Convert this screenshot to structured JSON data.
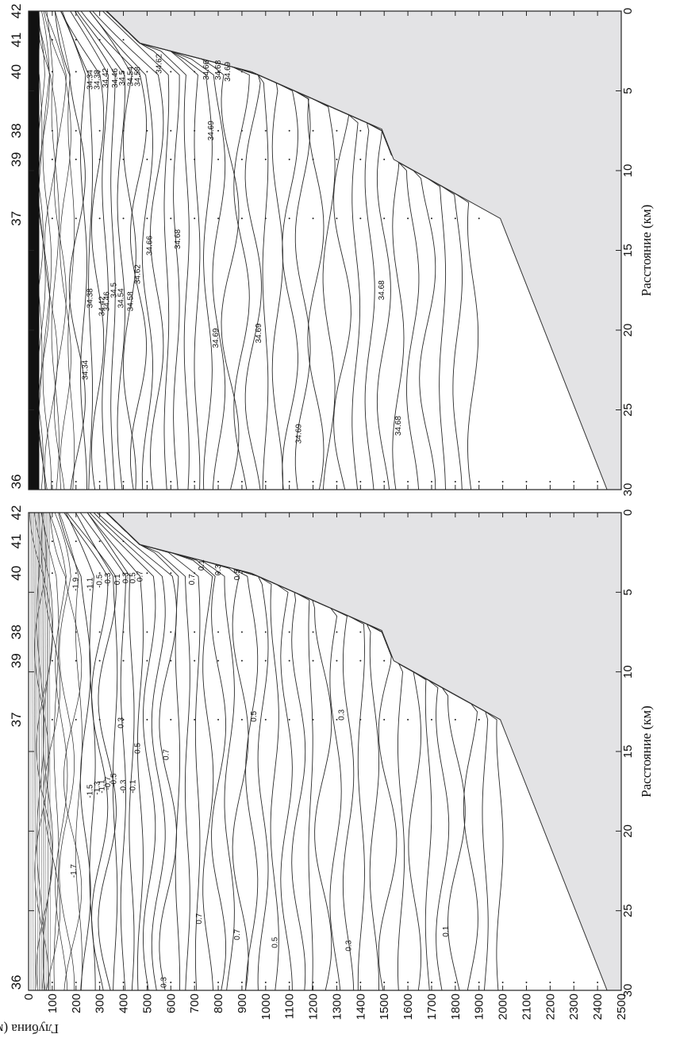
{
  "figure": {
    "depth_axis_label": "Глубина (м)",
    "distance_axis_label": "Расстояние (км)"
  },
  "chart_data": [
    {
      "type": "contour",
      "panel": "top",
      "variable": "salinity",
      "x_axis": {
        "label": "Расстояние (км)",
        "range": [
          0,
          30
        ],
        "ticks": [
          0,
          5,
          10,
          15,
          20,
          25,
          30
        ]
      },
      "y_axis": {
        "label": "Глубина (м)",
        "range": [
          0,
          2500
        ],
        "ticks": [
          0,
          100,
          200,
          300,
          400,
          500,
          600,
          700,
          800,
          900,
          1000,
          1100,
          1200,
          1300,
          1400,
          1500,
          1600,
          1700,
          1800,
          1900,
          2000,
          2100,
          2200,
          2300,
          2400,
          2500
        ]
      },
      "stations": [
        {
          "name": "42",
          "distance": 0
        },
        {
          "name": "41",
          "distance": 1.8
        },
        {
          "name": "40",
          "distance": 3.8
        },
        {
          "name": "38",
          "distance": 7.5
        },
        {
          "name": "39",
          "distance": 9.3
        },
        {
          "name": "37",
          "distance": 13
        },
        {
          "name": "36",
          "distance": 29.5
        }
      ],
      "bottom_profile": [
        {
          "distance": 0,
          "depth": 330
        },
        {
          "distance": 2,
          "depth": 470
        },
        {
          "distance": 3.8,
          "depth": 940
        },
        {
          "distance": 7.4,
          "depth": 1490
        },
        {
          "distance": 9.3,
          "depth": 1540
        },
        {
          "distance": 13,
          "depth": 1990
        },
        {
          "distance": 30,
          "depth": 2440
        }
      ],
      "contour_labels": [
        {
          "text": "34.34",
          "distance": 22.5,
          "depth": 250
        },
        {
          "text": "34.38",
          "distance": 18,
          "depth": 270
        },
        {
          "text": "34.42",
          "distance": 18.5,
          "depth": 320
        },
        {
          "text": "34.46",
          "distance": 18.2,
          "depth": 340
        },
        {
          "text": "34.5",
          "distance": 17.5,
          "depth": 370
        },
        {
          "text": "34.54",
          "distance": 18,
          "depth": 400
        },
        {
          "text": "34.58",
          "distance": 18.2,
          "depth": 440
        },
        {
          "text": "34.62",
          "distance": 16.5,
          "depth": 470
        },
        {
          "text": "34.66",
          "distance": 14.7,
          "depth": 520
        },
        {
          "text": "34.68",
          "distance": 14.3,
          "depth": 640
        },
        {
          "text": "34.69",
          "distance": 20.5,
          "depth": 800
        },
        {
          "text": "34.69",
          "distance": 20.2,
          "depth": 980
        },
        {
          "text": "34.69",
          "distance": 26.5,
          "depth": 1150
        },
        {
          "text": "34.68",
          "distance": 17.5,
          "depth": 1500
        },
        {
          "text": "34.68",
          "distance": 26,
          "depth": 1570
        },
        {
          "text": "34.69",
          "distance": 7.5,
          "depth": 780
        },
        {
          "text": "34.34",
          "distance": 4.3,
          "depth": 270
        },
        {
          "text": "34.38",
          "distance": 4.3,
          "depth": 300
        },
        {
          "text": "34.42",
          "distance": 4.2,
          "depth": 335
        },
        {
          "text": "34.46",
          "distance": 4.2,
          "depth": 375
        },
        {
          "text": "34.5",
          "distance": 4.2,
          "depth": 405
        },
        {
          "text": "34.54",
          "distance": 4.1,
          "depth": 440
        },
        {
          "text": "34.58",
          "distance": 4.1,
          "depth": 470
        },
        {
          "text": "34.62",
          "distance": 3.3,
          "depth": 560
        },
        {
          "text": "34.66",
          "distance": 3.7,
          "depth": 760
        },
        {
          "text": "34.68",
          "distance": 3.7,
          "depth": 810
        },
        {
          "text": "34.69",
          "distance": 3.8,
          "depth": 850
        }
      ]
    },
    {
      "type": "contour",
      "panel": "bottom",
      "variable": "temperature",
      "x_axis": {
        "label": "Расстояние (км)",
        "range": [
          0,
          30
        ],
        "ticks": [
          0,
          5,
          10,
          15,
          20,
          25,
          30
        ]
      },
      "y_axis": {
        "label": "Глубина (м)",
        "range": [
          0,
          2500
        ],
        "ticks": [
          0,
          100,
          200,
          300,
          400,
          500,
          600,
          700,
          800,
          900,
          1000,
          1100,
          1200,
          1300,
          1400,
          1500,
          1600,
          1700,
          1800,
          1900,
          2000,
          2100,
          2200,
          2300,
          2400,
          2500
        ]
      },
      "stations": [
        {
          "name": "42",
          "distance": 0
        },
        {
          "name": "41",
          "distance": 1.8
        },
        {
          "name": "40",
          "distance": 3.8
        },
        {
          "name": "38",
          "distance": 7.5
        },
        {
          "name": "39",
          "distance": 9.3
        },
        {
          "name": "37",
          "distance": 13
        },
        {
          "name": "36",
          "distance": 29.5
        }
      ],
      "bottom_profile": [
        {
          "distance": 0,
          "depth": 330
        },
        {
          "distance": 2,
          "depth": 470
        },
        {
          "distance": 3.8,
          "depth": 940
        },
        {
          "distance": 7.4,
          "depth": 1490
        },
        {
          "distance": 9.3,
          "depth": 1540
        },
        {
          "distance": 13,
          "depth": 1990
        },
        {
          "distance": 30,
          "depth": 2440
        }
      ],
      "contour_labels": [
        {
          "text": "-1.7",
          "distance": 22.5,
          "depth": 200
        },
        {
          "text": "-1.5",
          "distance": 17.5,
          "depth": 270
        },
        {
          "text": "-1.3",
          "distance": 17.3,
          "depth": 300
        },
        {
          "text": "-1.1",
          "distance": 17.2,
          "depth": 320
        },
        {
          "text": "-0.7",
          "distance": 17,
          "depth": 345
        },
        {
          "text": "-0.5",
          "distance": 16.8,
          "depth": 370
        },
        {
          "text": "-0.3",
          "distance": 17.2,
          "depth": 410
        },
        {
          "text": "-0.1",
          "distance": 17.2,
          "depth": 450
        },
        {
          "text": "0.3",
          "distance": 13.2,
          "depth": 400
        },
        {
          "text": "0.5",
          "distance": 14.8,
          "depth": 470
        },
        {
          "text": "0.7",
          "distance": 15.2,
          "depth": 590
        },
        {
          "text": "0.3",
          "distance": 29.5,
          "depth": 580
        },
        {
          "text": "0.7",
          "distance": 25.5,
          "depth": 730
        },
        {
          "text": "0.7",
          "distance": 26.5,
          "depth": 890
        },
        {
          "text": "0.5",
          "distance": 27,
          "depth": 1050
        },
        {
          "text": "0.3",
          "distance": 27.2,
          "depth": 1360
        },
        {
          "text": "0.1",
          "distance": 26.3,
          "depth": 1770
        },
        {
          "text": "0.5",
          "distance": 12.8,
          "depth": 960
        },
        {
          "text": "0.3",
          "distance": 12.7,
          "depth": 1330
        },
        {
          "text": "-1.9",
          "distance": 4.5,
          "depth": 210
        },
        {
          "text": "-1.1",
          "distance": 4.5,
          "depth": 270
        },
        {
          "text": "-0.5",
          "distance": 4.3,
          "depth": 310
        },
        {
          "text": "-0.3",
          "distance": 4.2,
          "depth": 345
        },
        {
          "text": "0.1",
          "distance": 4.2,
          "depth": 385
        },
        {
          "text": "0.3",
          "distance": 4.1,
          "depth": 420
        },
        {
          "text": "0.5",
          "distance": 4.1,
          "depth": 450
        },
        {
          "text": "0.7",
          "distance": 4,
          "depth": 480
        },
        {
          "text": "0.7",
          "distance": 4.2,
          "depth": 700
        },
        {
          "text": "0.5",
          "distance": 3.9,
          "depth": 890
        },
        {
          "text": "0.1",
          "distance": 3.3,
          "depth": 740
        },
        {
          "text": "0.3",
          "distance": 3.6,
          "depth": 810
        }
      ]
    }
  ]
}
